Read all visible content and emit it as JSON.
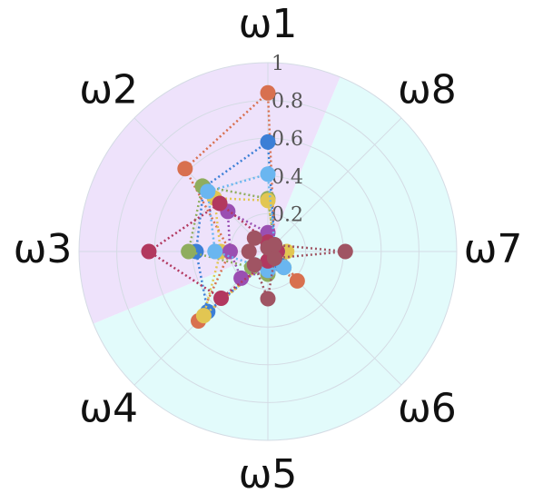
{
  "chart_data": {
    "type": "radar",
    "categories": [
      "ω1",
      "ω2",
      "ω3",
      "ω4",
      "ω5",
      "ω6",
      "ω7",
      "ω8"
    ],
    "ylim": [
      0,
      1
    ],
    "yticks": [
      0.2,
      0.4,
      0.6,
      0.8,
      1
    ],
    "grid": true,
    "series": [
      {
        "color": "#d8704f",
        "values": [
          0.84,
          0.62,
          0.2,
          0.52,
          0.05,
          0.22,
          0.05,
          0.05
        ]
      },
      {
        "color": "#3c7fd6",
        "values": [
          0.58,
          0.48,
          0.38,
          0.45,
          0.05,
          0.1,
          0.05,
          0.05
        ]
      },
      {
        "color": "#8fad5e",
        "values": [
          0.28,
          0.49,
          0.42,
          0.12,
          0.12,
          0.05,
          0.05,
          0.05
        ]
      },
      {
        "color": "#e2c652",
        "values": [
          0.27,
          0.4,
          0.25,
          0.48,
          0.05,
          0.12,
          0.1,
          0.05
        ]
      },
      {
        "color": "#9a4fb2",
        "values": [
          0.1,
          0.3,
          0.2,
          0.2,
          0.1,
          0.05,
          0.05,
          0.05
        ]
      },
      {
        "color": "#6ab6f0",
        "values": [
          0.41,
          0.45,
          0.28,
          0.1,
          0.1,
          0.12,
          0.05,
          0.05
        ]
      },
      {
        "color": "#b2385f",
        "values": [
          0.05,
          0.36,
          0.63,
          0.35,
          0.05,
          0.05,
          0.05,
          0.05
        ]
      },
      {
        "color": "#a05463",
        "values": [
          0.02,
          0.1,
          0.1,
          0.1,
          0.25,
          0.05,
          0.41,
          0.05
        ]
      }
    ]
  }
}
